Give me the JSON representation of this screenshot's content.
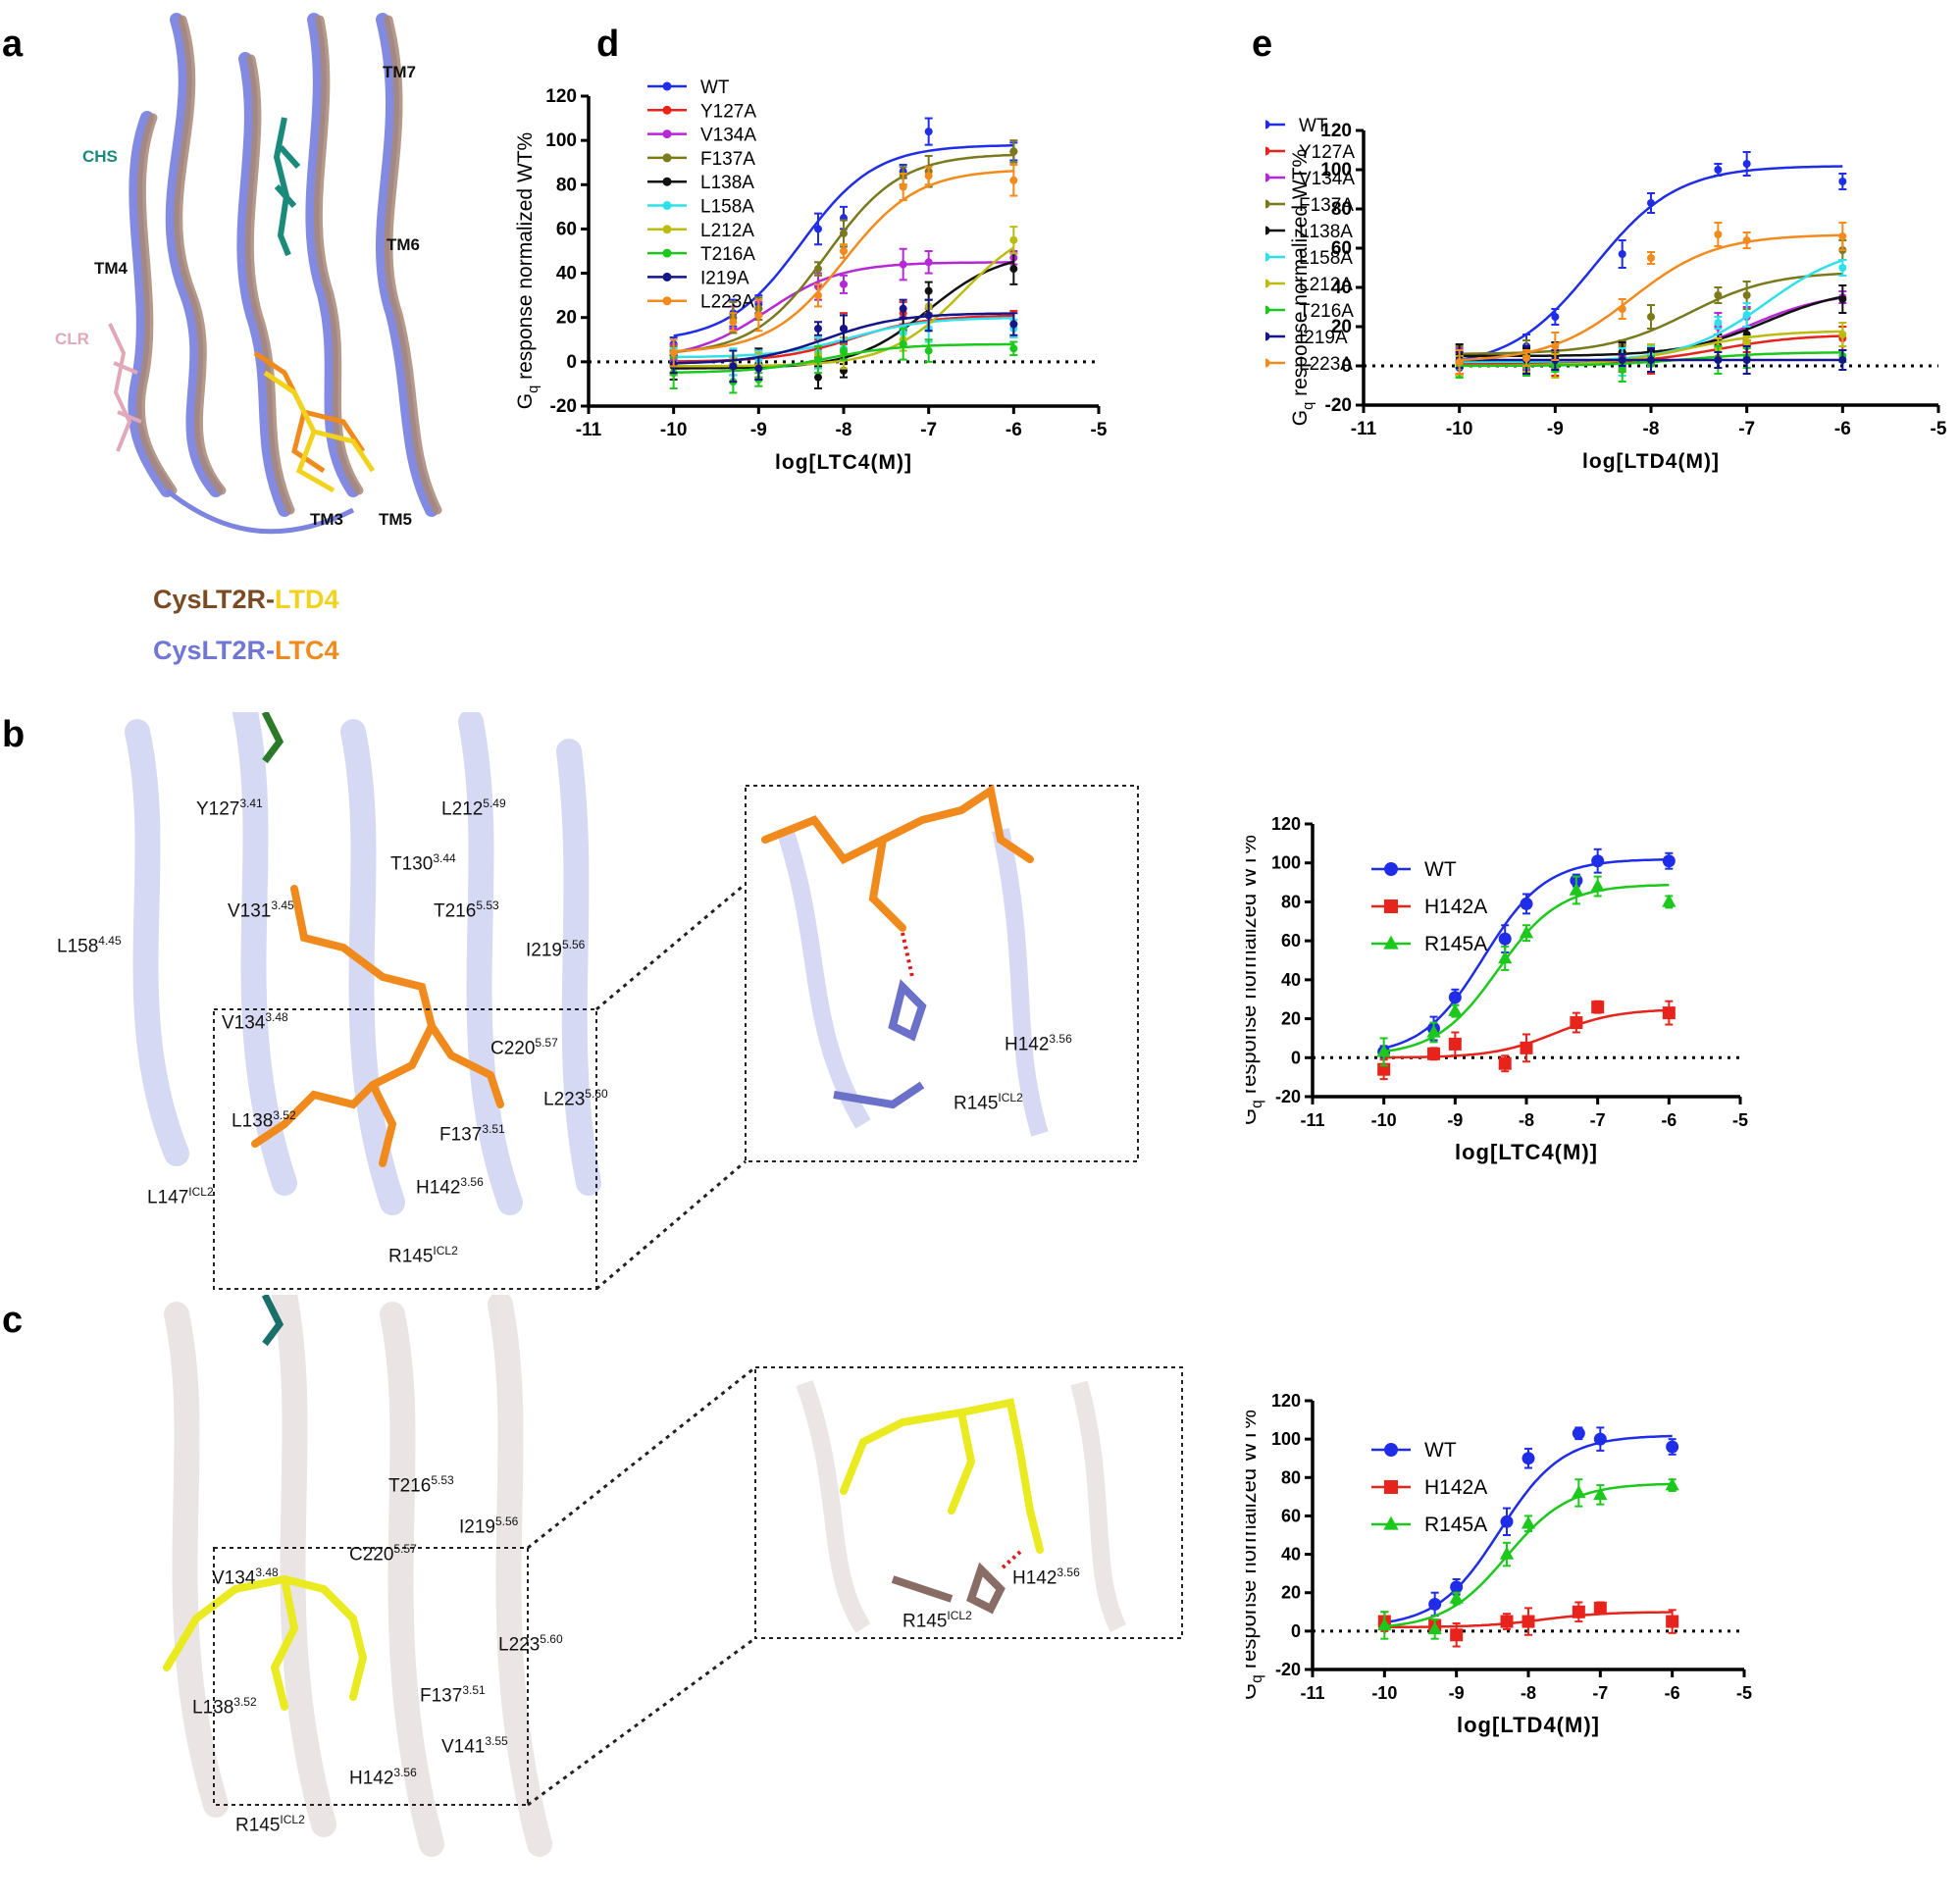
{
  "panels": {
    "a": "a",
    "b": "b",
    "c": "c",
    "d": "d",
    "e": "e"
  },
  "panel_a": {
    "tm_labels": {
      "tm7": "TM7",
      "tm6": "TM6",
      "tm4": "TM4",
      "tm3": "TM3",
      "tm5": "TM5"
    },
    "chs": "CHS",
    "clr": "CLR",
    "legend1_prefix": "CysLT2R-",
    "legend1_ligand": "LTD4",
    "legend2_prefix": "CysLT2R-",
    "legend2_ligand": "LTC4",
    "colors": {
      "ltd4_receptor": "#8a5a3a",
      "ltd4": "#f2d21a",
      "ltc4_receptor": "#7076d6",
      "ltc4": "#f08a1c",
      "chs": "#1a8a7a",
      "clr": "#e0a8b8"
    }
  },
  "panel_b": {
    "residues": [
      {
        "name": "Y127",
        "sup": "3.41"
      },
      {
        "name": "L212",
        "sup": "5.49"
      },
      {
        "name": "T130",
        "sup": "3.44"
      },
      {
        "name": "V131",
        "sup": "3.45"
      },
      {
        "name": "T216",
        "sup": "5.53"
      },
      {
        "name": "L158",
        "sup": "4.45"
      },
      {
        "name": "I219",
        "sup": "5.56"
      },
      {
        "name": "V134",
        "sup": "3.48"
      },
      {
        "name": "C220",
        "sup": "5.57"
      },
      {
        "name": "L223",
        "sup": "5.60"
      },
      {
        "name": "L138",
        "sup": "3.52"
      },
      {
        "name": "F137",
        "sup": "3.51"
      },
      {
        "name": "L147",
        "sup": "ICL2"
      },
      {
        "name": "H142",
        "sup": "3.56"
      },
      {
        "name": "R145",
        "sup": "ICL2"
      }
    ],
    "zoom": [
      {
        "name": "H142",
        "sup": "3.56"
      },
      {
        "name": "R145",
        "sup": "ICL2"
      }
    ]
  },
  "panel_c": {
    "residues": [
      {
        "name": "T216",
        "sup": "5.53"
      },
      {
        "name": "I219",
        "sup": "5.56"
      },
      {
        "name": "C220",
        "sup": "5.57"
      },
      {
        "name": "V134",
        "sup": "3.48"
      },
      {
        "name": "L223",
        "sup": "5.60"
      },
      {
        "name": "L138",
        "sup": "3.52"
      },
      {
        "name": "F137",
        "sup": "3.51"
      },
      {
        "name": "V141",
        "sup": "3.55"
      },
      {
        "name": "H142",
        "sup": "3.56"
      },
      {
        "name": "R145",
        "sup": "ICL2"
      }
    ],
    "zoom": [
      {
        "name": "H142",
        "sup": "3.56"
      },
      {
        "name": "R145",
        "sup": "ICL2"
      }
    ]
  },
  "chart_data": [
    {
      "id": "d",
      "type": "line",
      "ylabel_main": "G",
      "ylabel_sub": "q",
      "ylabel_rest": " response normalized WT%",
      "xlabel": "log[LTC4(M)]",
      "xlim": [
        -11,
        -5
      ],
      "ylim": [
        -20,
        120
      ],
      "xticks": [
        -11,
        -10,
        -9,
        -8,
        -7,
        -6,
        -5
      ],
      "yticks": [
        -20,
        0,
        20,
        40,
        60,
        80,
        100,
        120
      ],
      "x": [
        -10,
        -9.3,
        -9,
        -8.3,
        -8,
        -7.3,
        -7,
        -6
      ],
      "legend_position": "top-left",
      "series": [
        {
          "name": "WT",
          "color": "#1f2de8",
          "values": [
            8,
            22,
            26,
            60,
            65,
            86,
            104,
            95
          ],
          "fit": {
            "bottom": 9,
            "top": 98,
            "ec50": -8.5
          }
        },
        {
          "name": "Y127A",
          "color": "#e8231c",
          "values": [
            0,
            -1,
            -1,
            6,
            15,
            22,
            21,
            17
          ],
          "fit": {
            "bottom": 0,
            "top": 21,
            "ec50": -7.9
          }
        },
        {
          "name": "V134A",
          "color": "#b628d6",
          "values": [
            1,
            20,
            24,
            34,
            35,
            44,
            45,
            47
          ],
          "fit": {
            "bottom": 1,
            "top": 45,
            "ec50": -8.9
          }
        },
        {
          "name": "F137A",
          "color": "#7a7a1c",
          "values": [
            3,
            20,
            24,
            42,
            58,
            84,
            86,
            95
          ],
          "fit": {
            "bottom": 3,
            "top": 94,
            "ec50": -8.2
          }
        },
        {
          "name": "L138A",
          "color": "#111111",
          "values": [
            -2,
            -2,
            -1,
            -7,
            -4,
            14,
            32,
            42
          ],
          "fit": {
            "bottom": -3,
            "top": 50,
            "ec50": -7.0
          }
        },
        {
          "name": "L158A",
          "color": "#2ee0ea",
          "values": [
            3,
            0,
            1,
            4,
            6,
            13,
            15,
            15
          ],
          "fit": {
            "bottom": 2,
            "top": 20,
            "ec50": -7.9
          }
        },
        {
          "name": "L212A",
          "color": "#bcbc10",
          "values": [
            -1,
            -1,
            -2,
            3,
            4,
            10,
            25,
            55
          ],
          "fit": {
            "bottom": -2,
            "top": 65,
            "ec50": -6.6
          }
        },
        {
          "name": "T216A",
          "color": "#1bc81b",
          "values": [
            -5,
            -9,
            -8,
            1,
            5,
            8,
            5,
            6
          ],
          "fit": {
            "bottom": -5,
            "top": 8,
            "ec50": -8.2
          }
        },
        {
          "name": "I219A",
          "color": "#14158a",
          "values": [
            -1,
            -2,
            -3,
            15,
            15,
            24,
            21,
            17
          ],
          "fit": {
            "bottom": -1,
            "top": 22,
            "ec50": -8.2
          }
        },
        {
          "name": "L223A",
          "color": "#f28a1c",
          "values": [
            4,
            18,
            21,
            30,
            50,
            79,
            84,
            82
          ],
          "fit": {
            "bottom": 4,
            "top": 87,
            "ec50": -8.0
          }
        }
      ]
    },
    {
      "id": "e",
      "type": "line",
      "ylabel_main": "G",
      "ylabel_sub": "q",
      "ylabel_rest": " response normalized WT%",
      "xlabel": "log[LTD4(M)]",
      "xlim": [
        -11,
        -5
      ],
      "ylim": [
        -20,
        120
      ],
      "xticks": [
        -11,
        -10,
        -9,
        -8,
        -7,
        -6,
        -5
      ],
      "yticks": [
        -20,
        0,
        20,
        40,
        60,
        80,
        100,
        120
      ],
      "x": [
        -10,
        -9.3,
        -9,
        -8.3,
        -8,
        -7.3,
        -7,
        -6
      ],
      "legend_position": "top-left",
      "series": [
        {
          "name": "WT",
          "color": "#1f2de8",
          "values": [
            -1,
            10,
            25,
            57,
            83,
            100,
            103,
            94
          ],
          "fit": {
            "bottom": -1,
            "top": 102,
            "ec50": -8.6
          }
        },
        {
          "name": "Y127A",
          "color": "#e8231c",
          "values": [
            1,
            1,
            1,
            1,
            3,
            4,
            10,
            14
          ],
          "fit": {
            "bottom": 1,
            "top": 16,
            "ec50": -7.3
          }
        },
        {
          "name": "V134A",
          "color": "#b628d6",
          "values": [
            2,
            3,
            2,
            5,
            7,
            20,
            25,
            35
          ],
          "fit": {
            "bottom": 2,
            "top": 38,
            "ec50": -7.0
          }
        },
        {
          "name": "F137A",
          "color": "#7a7a1c",
          "values": [
            6,
            6,
            7,
            10,
            25,
            36,
            36,
            59
          ],
          "fit": {
            "bottom": 6,
            "top": 48,
            "ec50": -7.6
          }
        },
        {
          "name": "L138A",
          "color": "#111111",
          "values": [
            5,
            5,
            5,
            7,
            8,
            10,
            16,
            34
          ],
          "fit": {
            "bottom": 5,
            "top": 40,
            "ec50": -6.8
          }
        },
        {
          "name": "L158A",
          "color": "#2ee0ea",
          "values": [
            2,
            2,
            2,
            2,
            5,
            22,
            26,
            50
          ],
          "fit": {
            "bottom": 2,
            "top": 62,
            "ec50": -6.8
          }
        },
        {
          "name": "L212A",
          "color": "#bcbc10",
          "values": [
            0,
            0,
            0,
            2,
            4,
            9,
            12,
            16
          ],
          "fit": {
            "bottom": 0,
            "top": 18,
            "ec50": -7.6
          }
        },
        {
          "name": "T216A",
          "color": "#1bc81b",
          "values": [
            1,
            0,
            0,
            -2,
            1,
            3,
            4,
            5
          ],
          "fit": {
            "bottom": 0,
            "top": 7,
            "ec50": -7.6
          }
        },
        {
          "name": "I219A",
          "color": "#14158a",
          "values": [
            3,
            3,
            3,
            3,
            3,
            3,
            3,
            3
          ],
          "fit": {
            "bottom": 3,
            "top": 3,
            "ec50": -8.0
          }
        },
        {
          "name": "L223A",
          "color": "#f28a1c",
          "values": [
            2,
            4,
            10,
            29,
            55,
            67,
            64,
            66
          ],
          "fit": {
            "bottom": 2,
            "top": 67,
            "ec50": -8.2
          }
        }
      ]
    },
    {
      "id": "b-right",
      "type": "line",
      "ylabel_main": "G",
      "ylabel_sub": "q",
      "ylabel_rest": " response normalized WT%",
      "xlabel": "log[LTC4(M)]",
      "xlim": [
        -11,
        -5
      ],
      "ylim": [
        -20,
        120
      ],
      "xticks": [
        -11,
        -10,
        -9,
        -8,
        -7,
        -6,
        -5
      ],
      "yticks": [
        -20,
        0,
        20,
        40,
        60,
        80,
        100,
        120
      ],
      "x": [
        -10,
        -9.3,
        -9,
        -8.3,
        -8,
        -7.3,
        -7,
        -6
      ],
      "legend_position": "top-left",
      "series": [
        {
          "name": "WT",
          "color": "#1f2de8",
          "marker": "circle",
          "values": [
            3,
            15,
            31,
            61,
            79,
            91,
            101,
            101
          ],
          "fit": {
            "bottom": 1,
            "top": 102,
            "ec50": -8.6
          }
        },
        {
          "name": "H142A",
          "color": "#e8231c",
          "marker": "square",
          "values": [
            -6,
            2,
            7,
            -3,
            5,
            18,
            26,
            23
          ],
          "fit": {
            "bottom": 0,
            "top": 25,
            "ec50": -7.6
          }
        },
        {
          "name": "R145A",
          "color": "#1bc81b",
          "marker": "triangle",
          "values": [
            3,
            13,
            24,
            51,
            64,
            86,
            88,
            80
          ],
          "fit": {
            "bottom": 1,
            "top": 89,
            "ec50": -8.4
          }
        }
      ]
    },
    {
      "id": "c-right",
      "type": "line",
      "ylabel_main": "G",
      "ylabel_sub": "q",
      "ylabel_rest": " response normalized WT%",
      "xlabel": "log[LTD4(M)]",
      "xlim": [
        -11,
        -5
      ],
      "ylim": [
        -20,
        120
      ],
      "xticks": [
        -11,
        -10,
        -9,
        -8,
        -7,
        -6,
        -5
      ],
      "yticks": [
        -20,
        0,
        20,
        40,
        60,
        80,
        100,
        120
      ],
      "x": [
        -10,
        -9.3,
        -9,
        -8.3,
        -8,
        -7.3,
        -7,
        -6
      ],
      "legend_position": "top-left",
      "series": [
        {
          "name": "WT",
          "color": "#1f2de8",
          "marker": "circle",
          "values": [
            4,
            14,
            23,
            57,
            90,
            103,
            100,
            96
          ],
          "fit": {
            "bottom": 2,
            "top": 102,
            "ec50": -8.4
          }
        },
        {
          "name": "H142A",
          "color": "#e8231c",
          "marker": "square",
          "values": [
            5,
            3,
            -2,
            5,
            5,
            10,
            12,
            5
          ],
          "fit": {
            "bottom": 2,
            "top": 10,
            "ec50": -7.8
          }
        },
        {
          "name": "R145A",
          "color": "#1bc81b",
          "marker": "triangle",
          "values": [
            3,
            1,
            17,
            40,
            56,
            72,
            71,
            76
          ],
          "fit": {
            "bottom": 1,
            "top": 77,
            "ec50": -8.3
          }
        }
      ]
    }
  ]
}
